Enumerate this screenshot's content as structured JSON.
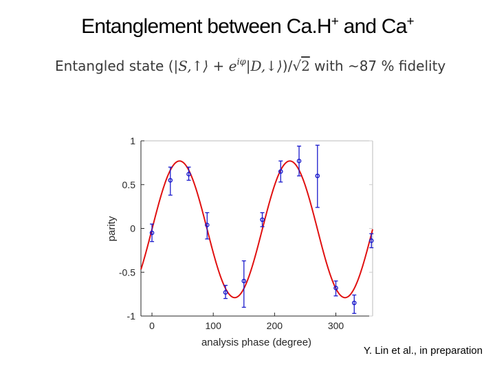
{
  "slide": {
    "title_main": "Entanglement between Ca.H",
    "title_sup1": "+",
    "title_mid": " and Ca",
    "title_sup2": "+",
    "subtitle_prefix": "Entangled state (",
    "state_s": "|S,↑⟩",
    "plus": " + ",
    "e": "e",
    "phase_exp": "iφ",
    "state_d": "|D,↓⟩",
    "close": ")/",
    "sqrt_sym": "√",
    "two": "2",
    "subtitle_suffix": " with ~87 % fidelity",
    "citation": "Y. Lin et al., in preparation"
  },
  "colors": {
    "fit": "#e01010",
    "points": "#1a1acc",
    "axis": "#262626",
    "grid": "#cccccc"
  },
  "chart_data": {
    "type": "scatter",
    "xlabel": "analysis phase (degree)",
    "ylabel": "parity",
    "xlim": [
      -18,
      360
    ],
    "ylim": [
      -1,
      1
    ],
    "xticks": [
      0,
      100,
      200,
      300
    ],
    "yticks": [
      -1,
      -0.5,
      0,
      0.5,
      1
    ],
    "ytick_labels": [
      "-1",
      "-0.5",
      "0",
      "0.5",
      "1"
    ],
    "grid": false,
    "series": [
      {
        "kind": "points_with_errorbars",
        "x": [
          0,
          30,
          60,
          90,
          120,
          150,
          180,
          210,
          240,
          270,
          300,
          330,
          358
        ],
        "y": [
          -0.05,
          0.55,
          0.62,
          0.04,
          -0.73,
          -0.6,
          0.1,
          0.65,
          0.77,
          0.6,
          -0.68,
          -0.85,
          -0.14
        ],
        "err_low": [
          0.1,
          0.17,
          0.07,
          0.16,
          0.07,
          0.3,
          0.08,
          0.12,
          0.17,
          0.36,
          0.09,
          0.12,
          0.08
        ],
        "err_high": [
          0.1,
          0.15,
          0.08,
          0.14,
          0.08,
          0.23,
          0.08,
          0.12,
          0.17,
          0.35,
          0.08,
          0.09,
          0.08
        ]
      },
      {
        "kind": "fit_curve",
        "amplitude": 0.78,
        "period_deg": 180,
        "phase_deg": -45,
        "offset": -0.01
      }
    ]
  }
}
